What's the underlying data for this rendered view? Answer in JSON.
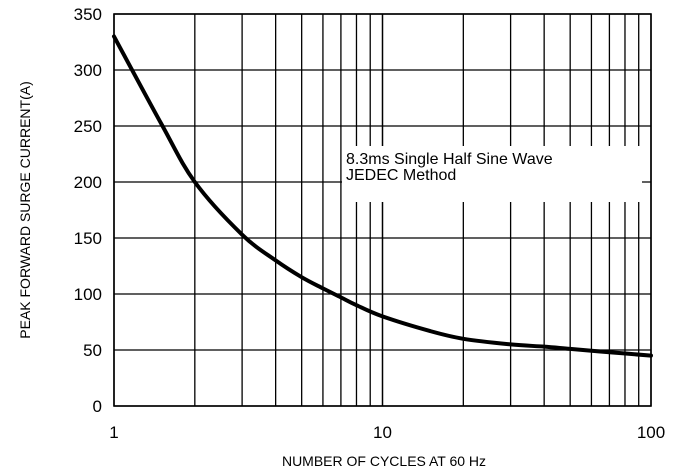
{
  "chart_data": {
    "type": "line",
    "title": "",
    "xlabel": "NUMBER OF CYCLES AT 60 Hz",
    "ylabel": "PEAK FORWARD SURGE CURRENT(A)",
    "x_scale": "log",
    "xlim": [
      1,
      100
    ],
    "ylim": [
      0,
      350
    ],
    "x_ticks": [
      "1",
      "10",
      "100"
    ],
    "y_ticks": [
      "0",
      "50",
      "100",
      "150",
      "200",
      "250",
      "300",
      "350"
    ],
    "grid": true,
    "annotation_lines": [
      "8.3ms Single Half Sine Wave",
      "JEDEC Method"
    ],
    "series": [
      {
        "x": [
          1,
          1.5,
          2,
          3,
          4,
          5,
          6,
          7,
          8,
          10,
          15,
          20,
          30,
          40,
          50,
          70,
          100
        ],
        "values": [
          330,
          252,
          200,
          153,
          130,
          115,
          105,
          97,
          90,
          80,
          67,
          60,
          55,
          53,
          51,
          48,
          45
        ]
      }
    ]
  }
}
